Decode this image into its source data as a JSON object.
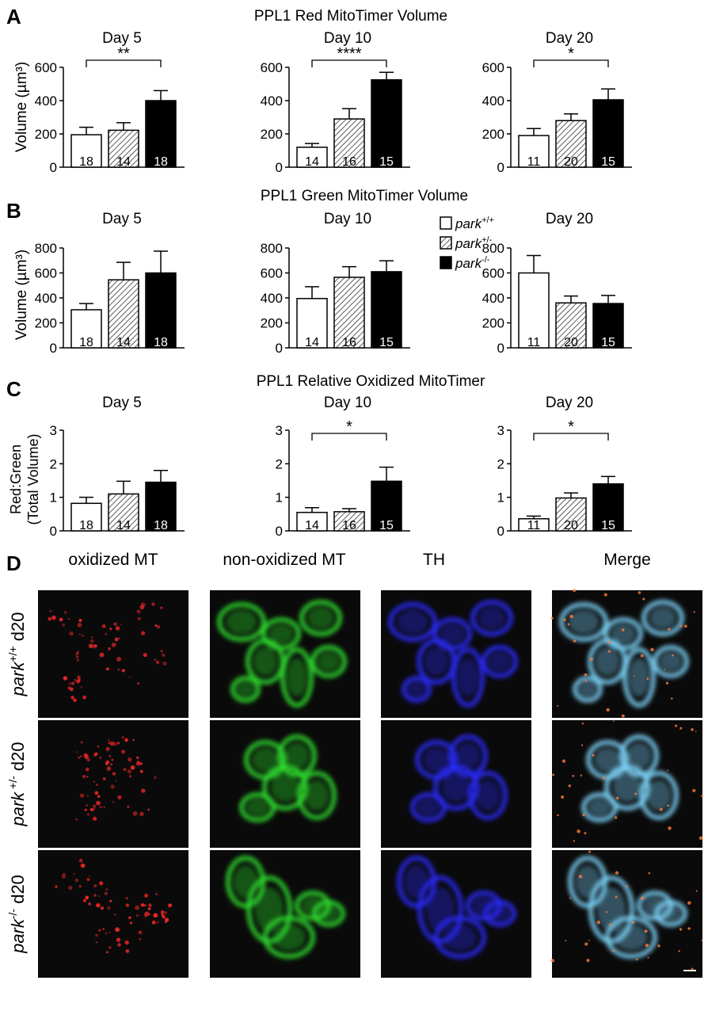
{
  "panel_letters": [
    "A",
    "B",
    "C",
    "D"
  ],
  "legend": {
    "entries": [
      {
        "base": "park",
        "sup": "+/+",
        "pattern": "open"
      },
      {
        "base": "park",
        "sup": "+/-",
        "pattern": "hatched"
      },
      {
        "base": "park",
        "sup": "-/-",
        "pattern": "solid"
      }
    ]
  },
  "chart_data": [
    {
      "type": "bar",
      "panel": "A",
      "title": "PPL1 Red MitoTimer Volume",
      "ylabel": "Volume (µm³)",
      "ylim": [
        0,
        600
      ],
      "yticks": [
        0,
        200,
        400,
        600
      ],
      "subplots": [
        {
          "title": "Day 5",
          "values": [
            195,
            222,
            400
          ],
          "errors": [
            45,
            45,
            60
          ],
          "n": [
            "18",
            "14",
            "18"
          ],
          "significance": {
            "from": 0,
            "to": 2,
            "label": "**"
          }
        },
        {
          "title": "Day 10",
          "values": [
            120,
            290,
            525
          ],
          "errors": [
            22,
            62,
            45
          ],
          "n": [
            "14",
            "16",
            "15"
          ],
          "significance": {
            "from": 0,
            "to": 2,
            "label": "****"
          }
        },
        {
          "title": "Day 20",
          "values": [
            190,
            280,
            405
          ],
          "errors": [
            42,
            40,
            65
          ],
          "n": [
            "11",
            "20",
            "15"
          ],
          "significance": {
            "from": 0,
            "to": 2,
            "label": "*"
          }
        }
      ]
    },
    {
      "type": "bar",
      "panel": "B",
      "title": "PPL1 Green MitoTimer Volume",
      "ylabel": "Volume (µm³)",
      "ylim": [
        0,
        800
      ],
      "yticks": [
        0,
        200,
        400,
        600,
        800
      ],
      "subplots": [
        {
          "title": "Day 5",
          "values": [
            305,
            545,
            600
          ],
          "errors": [
            50,
            140,
            175
          ],
          "n": [
            "18",
            "14",
            "18"
          ]
        },
        {
          "title": "Day 10",
          "values": [
            395,
            565,
            610
          ],
          "errors": [
            95,
            85,
            88
          ],
          "n": [
            "14",
            "16",
            "15"
          ]
        },
        {
          "title": "Day 20",
          "values": [
            600,
            360,
            355
          ],
          "errors": [
            140,
            55,
            65
          ],
          "n": [
            "11",
            "20",
            "15"
          ]
        }
      ]
    },
    {
      "type": "bar",
      "panel": "C",
      "title": "PPL1 Relative Oxidized MitoTimer",
      "ylabel_lines": [
        "Red:Green",
        "(Total  Volume)"
      ],
      "ylim": [
        0,
        3
      ],
      "yticks": [
        0,
        1,
        2,
        3
      ],
      "subplots": [
        {
          "title": "Day 5",
          "values": [
            0.82,
            1.1,
            1.45
          ],
          "errors": [
            0.18,
            0.38,
            0.35
          ],
          "n": [
            "18",
            "14",
            "18"
          ]
        },
        {
          "title": "Day 10",
          "values": [
            0.55,
            0.57,
            1.48
          ],
          "errors": [
            0.14,
            0.09,
            0.42
          ],
          "n": [
            "14",
            "16",
            "15"
          ],
          "significance": {
            "from": 0,
            "to": 2,
            "label": "*"
          }
        },
        {
          "title": "Day 20",
          "values": [
            0.36,
            0.98,
            1.4
          ],
          "errors": [
            0.08,
            0.15,
            0.22
          ],
          "n": [
            "11",
            "20",
            "15"
          ],
          "significance": {
            "from": 0,
            "to": 2,
            "label": "*"
          }
        }
      ]
    }
  ],
  "micrographs": {
    "columns": [
      "oxidized MT",
      "non-oxidized MT",
      "TH",
      "Merge"
    ],
    "rows": [
      {
        "base": "park",
        "sup": "+/+",
        "suffix": " d20"
      },
      {
        "base": "park",
        "sup": " +/-",
        "suffix": " d20"
      },
      {
        "base": "park",
        "sup": "-/-",
        "suffix": " d20"
      }
    ],
    "channel_colors": [
      "#ff2a2a",
      "#2ee02e",
      "#2a2aff",
      "#7fd8ff"
    ]
  }
}
